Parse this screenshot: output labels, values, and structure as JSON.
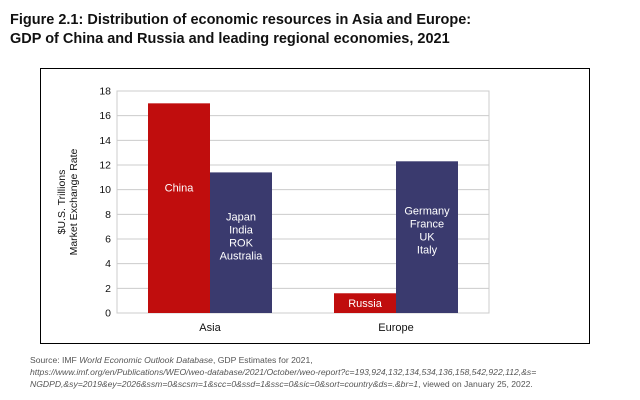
{
  "figure": {
    "title_line1": "Figure 2.1: Distribution of economic resources in Asia and Europe:",
    "title_line2": "GDP of China and Russia and leading regional economies, 2021"
  },
  "source": {
    "prefix": "Source: IMF ",
    "italic_title": "World Economic Outlook Database",
    "suffix": ", GDP Estimates for 2021,",
    "url_line1": "https://www.imf.org/en/Publications/WEO/weo-database/2021/October/weo-report?c=193,924,132,134,534,136,158,542,922,112,&s=",
    "url_line2": "NGDPD,&sy=2019&ey=2026&ssm=0&scsm=1&scc=0&ssd=1&ssc=0&sic=0&sort=country&ds=.&br=1",
    "viewed": ", viewed on January 25, 2022."
  },
  "colors": {
    "china_russia": "#c00d0d",
    "regional": "#3a3a6e",
    "grid": "#cccccc"
  },
  "chart_data": {
    "type": "bar",
    "title": "",
    "ylabel_line1": "$U.S. Trillions",
    "ylabel_line2": "Market Exchange Rate",
    "xlabel": "",
    "ylim": [
      0,
      18
    ],
    "yticks": [
      0,
      2,
      4,
      6,
      8,
      10,
      12,
      14,
      16,
      18
    ],
    "grid": true,
    "categories": [
      "Asia",
      "Europe"
    ],
    "series": [
      {
        "name": "China / Russia",
        "values": [
          17.0,
          1.6
        ],
        "bar_labels": [
          [
            "China"
          ],
          [
            "Russia"
          ]
        ]
      },
      {
        "name": "Leading regional economies",
        "values": [
          11.4,
          12.3
        ],
        "bar_labels": [
          [
            "Japan",
            "India",
            "ROK",
            "Australia"
          ],
          [
            "Germany",
            "France",
            "UK",
            "Italy"
          ]
        ]
      }
    ]
  }
}
